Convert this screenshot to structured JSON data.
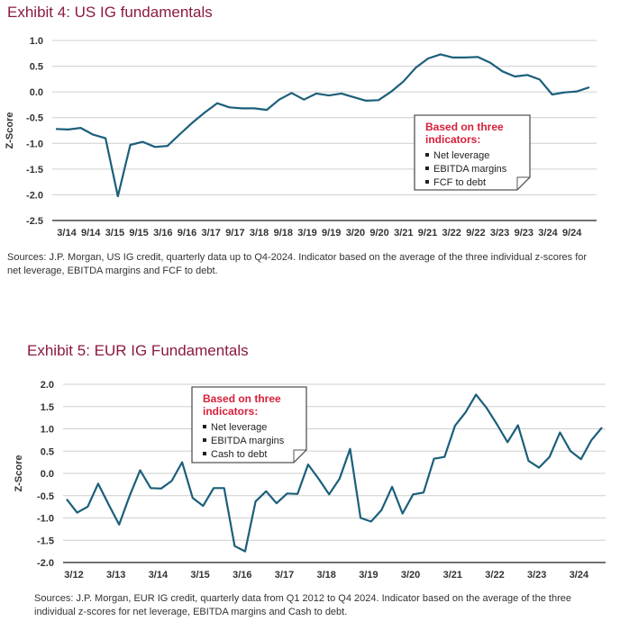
{
  "exhibit4": {
    "title": "Exhibit 4: US IG fundamentals",
    "source": "Sources: J.P. Morgan, US IG credit, quarterly data up to Q4-2024. Indicator based on the average of the three individual z-scores for net leverage, EBITDA margins and FCF to debt.",
    "legend": {
      "title_line1": "Based on three",
      "title_line2": "indicators:",
      "items": [
        "Net leverage",
        "EBITDA margins",
        "FCF to debt"
      ]
    }
  },
  "exhibit5": {
    "title": "Exhibit 5: EUR IG Fundamentals",
    "source": "Sources: J.P. Morgan, EUR IG credit, quarterly data from Q1 2012 to Q4 2024. Indicator based on the average of the three individual z-scores for net leverage, EBITDA margins and Cash to debt.",
    "legend": {
      "title_line1": "Based on three",
      "title_line2": "indicators:",
      "items": [
        "Net leverage",
        "EBITDA margins",
        "Cash to debt"
      ]
    }
  },
  "colors": {
    "title": "#8b1a3f",
    "series": "#1b5f7a",
    "legend_title": "#d6203a",
    "grid": "#cfcfcf"
  },
  "chart_data": [
    {
      "type": "line",
      "ylabel": "Z-Score",
      "ylim": [
        -2.5,
        1.0
      ],
      "yticks": [
        "1.0",
        "0.5",
        "0.0",
        "-0.5",
        "-1.0",
        "-1.5",
        "-2.0",
        "-2.5"
      ],
      "ytick_values": [
        1.0,
        0.5,
        0.0,
        -0.5,
        -1.0,
        -1.5,
        -2.0,
        -2.5
      ],
      "xticks": [
        "3/14",
        "9/14",
        "3/15",
        "9/15",
        "3/16",
        "9/16",
        "3/17",
        "9/17",
        "3/18",
        "9/18",
        "3/19",
        "9/19",
        "3/20",
        "9/20",
        "3/21",
        "9/21",
        "3/22",
        "9/22",
        "3/23",
        "9/23",
        "3/24",
        "9/24"
      ],
      "grid": "horizontal",
      "legend_position": "lower-right",
      "series": [
        {
          "values": [
            -0.72,
            -0.73,
            -0.7,
            -0.83,
            -0.9,
            -2.03,
            -1.03,
            -0.97,
            -1.07,
            -1.05,
            -0.82,
            -0.6,
            -0.4,
            -0.22,
            -0.3,
            -0.32,
            -0.32,
            -0.35,
            -0.15,
            -0.02,
            -0.15,
            -0.03,
            -0.07,
            -0.03,
            -0.1,
            -0.17,
            -0.16,
            0.0,
            0.2,
            0.47,
            0.65,
            0.73,
            0.67,
            0.67,
            0.68,
            0.57,
            0.4,
            0.3,
            0.33,
            0.24,
            -0.05,
            -0.01,
            0.01,
            0.09
          ]
        }
      ]
    },
    {
      "type": "line",
      "ylabel": "Z-Score",
      "ylim": [
        -2.0,
        2.0
      ],
      "yticks": [
        "2.0",
        "1.5",
        "1.0",
        "0.5",
        "0.0",
        "-0.5",
        "-1.0",
        "-1.5",
        "-2.0"
      ],
      "ytick_values": [
        2.0,
        1.5,
        1.0,
        0.5,
        0.0,
        -0.5,
        -1.0,
        -1.5,
        -2.0
      ],
      "xticks": [
        "3/12",
        "3/13",
        "3/14",
        "3/15",
        "3/16",
        "3/17",
        "3/18",
        "3/19",
        "3/20",
        "3/21",
        "3/22",
        "3/23",
        "3/24"
      ],
      "grid": "horizontal",
      "legend_position": "top-left",
      "series": [
        {
          "values": [
            -0.58,
            -0.88,
            -0.75,
            -0.23,
            -0.7,
            -1.15,
            -0.5,
            0.07,
            -0.33,
            -0.34,
            -0.17,
            0.25,
            -0.55,
            -0.73,
            -0.33,
            -0.33,
            -1.63,
            -1.75,
            -0.63,
            -0.4,
            -0.67,
            -0.45,
            -0.46,
            0.2,
            -0.12,
            -0.47,
            -0.12,
            0.55,
            -1.0,
            -1.08,
            -0.82,
            -0.3,
            -0.9,
            -0.47,
            -0.43,
            0.33,
            0.37,
            1.07,
            1.37,
            1.77,
            1.47,
            1.1,
            0.7,
            1.08,
            0.28,
            0.13,
            0.37,
            0.92,
            0.5,
            0.32,
            0.75,
            1.03
          ]
        }
      ]
    }
  ]
}
